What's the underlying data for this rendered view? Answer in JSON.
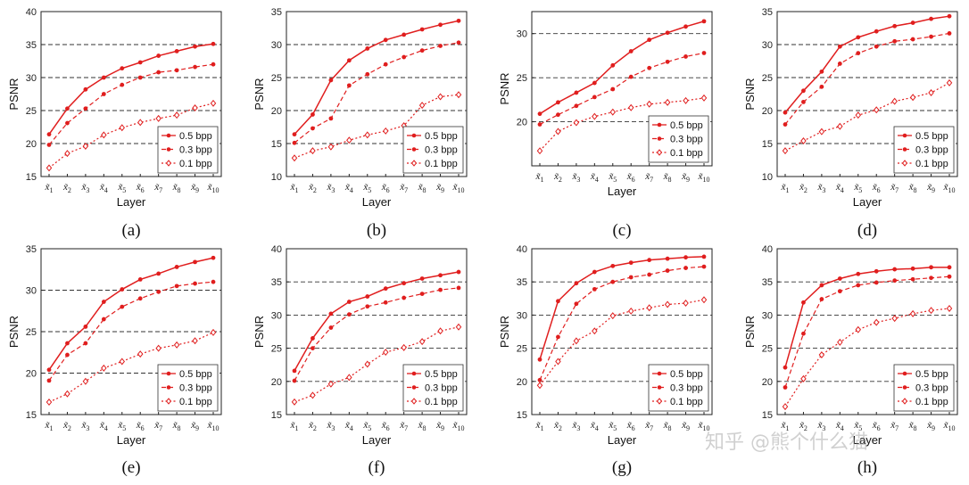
{
  "colors": {
    "series": "#e01e1e",
    "grid": "#333333",
    "axis": "#222222"
  },
  "watermark": "知乎 @熊个什么猫",
  "chart_data": [
    {
      "type": "line",
      "caption": "(a)",
      "xlabel": "Layer",
      "ylabel": "PSNR",
      "ylim": [
        15,
        40
      ],
      "yticks": [
        15,
        20,
        25,
        30,
        35,
        40
      ],
      "grid": "dashed horizontal",
      "legend_position": "lower-right",
      "categories": [
        "x̃1",
        "x̃2",
        "x̃3",
        "x̃4",
        "x̃5",
        "x̃6",
        "x̃7",
        "x̃8",
        "x̃9",
        "x̃10"
      ],
      "series": [
        {
          "name": "0.5 bpp",
          "style": "solid",
          "values": [
            21.4,
            25.3,
            28.2,
            30.0,
            31.4,
            32.3,
            33.3,
            34.0,
            34.7,
            35.1
          ]
        },
        {
          "name": "0.3 bpp",
          "style": "dash",
          "values": [
            19.8,
            23.1,
            25.3,
            27.5,
            28.9,
            30.0,
            30.8,
            31.1,
            31.6,
            32.0
          ]
        },
        {
          "name": "0.1 bpp",
          "style": "dot",
          "values": [
            16.3,
            18.5,
            19.6,
            21.3,
            22.4,
            23.2,
            23.8,
            24.3,
            25.4,
            26.1
          ]
        }
      ]
    },
    {
      "type": "line",
      "caption": "(b)",
      "xlabel": "Layer",
      "ylabel": "PSNR",
      "ylim": [
        10,
        35
      ],
      "yticks": [
        10,
        15,
        20,
        25,
        30,
        35
      ],
      "grid": "dashed horizontal",
      "legend_position": "lower-right",
      "categories": [
        "x̃1",
        "x̃2",
        "x̃3",
        "x̃4",
        "x̃5",
        "x̃6",
        "x̃7",
        "x̃8",
        "x̃9",
        "x̃10"
      ],
      "series": [
        {
          "name": "0.5 bpp",
          "style": "solid",
          "values": [
            16.4,
            19.4,
            24.6,
            27.6,
            29.4,
            30.7,
            31.5,
            32.3,
            33.0,
            33.6
          ]
        },
        {
          "name": "0.3 bpp",
          "style": "dash",
          "values": [
            15.1,
            17.3,
            18.8,
            23.8,
            25.5,
            27.0,
            28.1,
            29.1,
            29.8,
            30.3
          ]
        },
        {
          "name": "0.1 bpp",
          "style": "dot",
          "values": [
            12.8,
            13.9,
            14.5,
            15.5,
            16.3,
            16.9,
            17.7,
            20.8,
            22.1,
            22.4
          ]
        }
      ]
    },
    {
      "type": "line",
      "caption": "(c)",
      "xlabel": "Layer",
      "ylabel": "PSNR",
      "ylim": [
        15,
        32.5
      ],
      "yticks": [
        20,
        25,
        30
      ],
      "grid": "dashed horizontal",
      "legend_position": "lower-right",
      "categories": [
        "x̃1",
        "x̃2",
        "x̃3",
        "x̃4",
        "x̃5",
        "x̃6",
        "x̃7",
        "x̃8",
        "x̃9",
        "x̃10"
      ],
      "series": [
        {
          "name": "0.5 bpp",
          "style": "solid",
          "values": [
            20.9,
            22.2,
            23.3,
            24.4,
            26.4,
            28.0,
            29.3,
            30.1,
            30.8,
            31.4
          ]
        },
        {
          "name": "0.3 bpp",
          "style": "dash",
          "values": [
            19.7,
            20.8,
            21.8,
            22.8,
            23.7,
            25.1,
            26.1,
            26.8,
            27.4,
            27.8
          ]
        },
        {
          "name": "0.1 bpp",
          "style": "dot",
          "values": [
            16.7,
            18.9,
            19.9,
            20.6,
            21.1,
            21.6,
            22.0,
            22.2,
            22.4,
            22.7
          ]
        }
      ]
    },
    {
      "type": "line",
      "caption": "(d)",
      "xlabel": "Layer",
      "ylabel": "PSNR",
      "ylim": [
        10,
        35
      ],
      "yticks": [
        10,
        15,
        20,
        25,
        30,
        35
      ],
      "grid": "dashed horizontal",
      "legend_position": "lower-right",
      "categories": [
        "x̃1",
        "x̃2",
        "x̃3",
        "x̃4",
        "x̃5",
        "x̃6",
        "x̃7",
        "x̃8",
        "x̃9",
        "x̃10"
      ],
      "series": [
        {
          "name": "0.5 bpp",
          "style": "solid",
          "values": [
            19.7,
            23.0,
            25.9,
            29.7,
            31.1,
            32.0,
            32.8,
            33.3,
            33.9,
            34.3
          ]
        },
        {
          "name": "0.3 bpp",
          "style": "dash",
          "values": [
            17.9,
            21.3,
            23.6,
            27.1,
            28.7,
            29.7,
            30.5,
            30.8,
            31.2,
            31.7
          ]
        },
        {
          "name": "0.1 bpp",
          "style": "dot",
          "values": [
            13.9,
            15.4,
            16.8,
            17.6,
            19.3,
            20.1,
            21.4,
            22.0,
            22.7,
            24.2
          ]
        }
      ]
    },
    {
      "type": "line",
      "caption": "(e)",
      "xlabel": "Layer",
      "ylabel": "PSNR",
      "ylim": [
        15,
        35
      ],
      "yticks": [
        15,
        20,
        25,
        30,
        35
      ],
      "grid": "dashed horizontal",
      "legend_position": "lower-right",
      "categories": [
        "x̃1",
        "x̃2",
        "x̃3",
        "x̃4",
        "x̃5",
        "x̃6",
        "x̃7",
        "x̃8",
        "x̃9",
        "x̃10"
      ],
      "series": [
        {
          "name": "0.5 bpp",
          "style": "solid",
          "values": [
            20.4,
            23.6,
            25.6,
            28.6,
            30.1,
            31.3,
            32.0,
            32.8,
            33.4,
            33.9
          ]
        },
        {
          "name": "0.3 bpp",
          "style": "dash",
          "values": [
            19.1,
            22.2,
            23.6,
            26.5,
            28.0,
            29.0,
            29.8,
            30.5,
            30.8,
            31.0
          ]
        },
        {
          "name": "0.1 bpp",
          "style": "dot",
          "values": [
            16.5,
            17.5,
            19.0,
            20.6,
            21.4,
            22.3,
            23.0,
            23.4,
            23.9,
            24.9
          ]
        }
      ]
    },
    {
      "type": "line",
      "caption": "(f)",
      "xlabel": "Layer",
      "ylabel": "PSNR",
      "ylim": [
        15,
        40
      ],
      "yticks": [
        15,
        20,
        25,
        30,
        35,
        40
      ],
      "grid": "dashed horizontal",
      "legend_position": "lower-right",
      "categories": [
        "x̃1",
        "x̃2",
        "x̃3",
        "x̃4",
        "x̃5",
        "x̃6",
        "x̃7",
        "x̃8",
        "x̃9",
        "x̃10"
      ],
      "series": [
        {
          "name": "0.5 bpp",
          "style": "solid",
          "values": [
            21.6,
            26.5,
            30.2,
            32.0,
            32.8,
            34.0,
            34.8,
            35.5,
            36.0,
            36.5
          ]
        },
        {
          "name": "0.3 bpp",
          "style": "dash",
          "values": [
            20.1,
            25.0,
            28.1,
            30.1,
            31.3,
            31.9,
            32.6,
            33.2,
            33.8,
            34.1
          ]
        },
        {
          "name": "0.1 bpp",
          "style": "dot",
          "values": [
            16.9,
            17.9,
            19.6,
            20.6,
            22.6,
            24.4,
            25.1,
            26.0,
            27.6,
            28.2
          ]
        }
      ]
    },
    {
      "type": "line",
      "caption": "(g)",
      "xlabel": "Layer",
      "ylabel": "PSNR",
      "ylim": [
        15,
        40
      ],
      "yticks": [
        15,
        20,
        25,
        30,
        35,
        40
      ],
      "grid": "dashed horizontal",
      "legend_position": "lower-right",
      "categories": [
        "x̃1",
        "x̃2",
        "x̃3",
        "x̃4",
        "x̃5",
        "x̃6",
        "x̃7",
        "x̃8",
        "x̃9",
        "x̃10"
      ],
      "series": [
        {
          "name": "0.5 bpp",
          "style": "solid",
          "values": [
            23.3,
            32.1,
            34.8,
            36.5,
            37.4,
            37.9,
            38.3,
            38.5,
            38.7,
            38.8
          ]
        },
        {
          "name": "0.3 bpp",
          "style": "dash",
          "values": [
            20.2,
            26.7,
            31.7,
            33.9,
            35.0,
            35.7,
            36.1,
            36.7,
            37.1,
            37.3
          ]
        },
        {
          "name": "0.1 bpp",
          "style": "dot",
          "values": [
            19.4,
            23.0,
            26.1,
            27.6,
            29.9,
            30.6,
            31.1,
            31.6,
            31.8,
            32.3
          ]
        }
      ]
    },
    {
      "type": "line",
      "caption": "(h)",
      "xlabel": "Layer",
      "ylabel": "PSNR",
      "ylim": [
        15,
        40
      ],
      "yticks": [
        15,
        20,
        25,
        30,
        35,
        40
      ],
      "grid": "dashed horizontal",
      "legend_position": "lower-right",
      "categories": [
        "x̃1",
        "x̃2",
        "x̃3",
        "x̃4",
        "x̃5",
        "x̃6",
        "x̃7",
        "x̃8",
        "x̃9",
        "x̃10"
      ],
      "series": [
        {
          "name": "0.5 bpp",
          "style": "solid",
          "values": [
            22.1,
            31.9,
            34.5,
            35.5,
            36.2,
            36.6,
            36.9,
            37.0,
            37.2,
            37.2
          ]
        },
        {
          "name": "0.3 bpp",
          "style": "dash",
          "values": [
            19.1,
            27.2,
            32.4,
            33.6,
            34.5,
            34.9,
            35.2,
            35.4,
            35.6,
            35.8
          ]
        },
        {
          "name": "0.1 bpp",
          "style": "dot",
          "values": [
            16.2,
            20.4,
            24.0,
            25.9,
            27.8,
            28.9,
            29.5,
            30.2,
            30.7,
            31.0
          ]
        }
      ]
    }
  ]
}
